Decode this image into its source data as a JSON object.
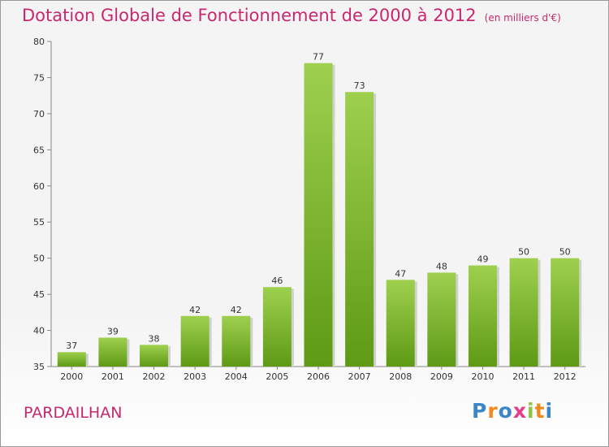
{
  "title": "Dotation Globale de Fonctionnement de 2000 à 2012",
  "unit_note": "(en milliers d'€)",
  "commune": "PARDAILHAN",
  "logo": {
    "text": "Proxiti",
    "letters": [
      {
        "ch": "P",
        "color": "#3a86c8"
      },
      {
        "ch": "r",
        "color": "#f08a1e"
      },
      {
        "ch": "o",
        "color": "#3a86c8"
      },
      {
        "ch": "x",
        "color": "#e63c8c"
      },
      {
        "ch": "i",
        "color": "#8cc63e"
      },
      {
        "ch": "t",
        "color": "#f08a1e"
      },
      {
        "ch": "i",
        "color": "#3a86c8"
      }
    ]
  },
  "colors": {
    "accent": "#c8286e",
    "bar_top": "#9ed04e",
    "bar_bottom": "#5e9a14"
  },
  "chart_data": {
    "type": "bar",
    "categories": [
      "2000",
      "2001",
      "2002",
      "2003",
      "2004",
      "2005",
      "2006",
      "2007",
      "2008",
      "2009",
      "2010",
      "2011",
      "2012"
    ],
    "values": [
      37,
      39,
      38,
      42,
      42,
      46,
      77,
      73,
      47,
      48,
      49,
      50,
      50
    ],
    "ylim": [
      35,
      80
    ],
    "yticks": [
      35,
      40,
      45,
      50,
      55,
      60,
      65,
      70,
      75,
      80
    ],
    "grid": false,
    "xlabel": "",
    "ylabel": ""
  }
}
